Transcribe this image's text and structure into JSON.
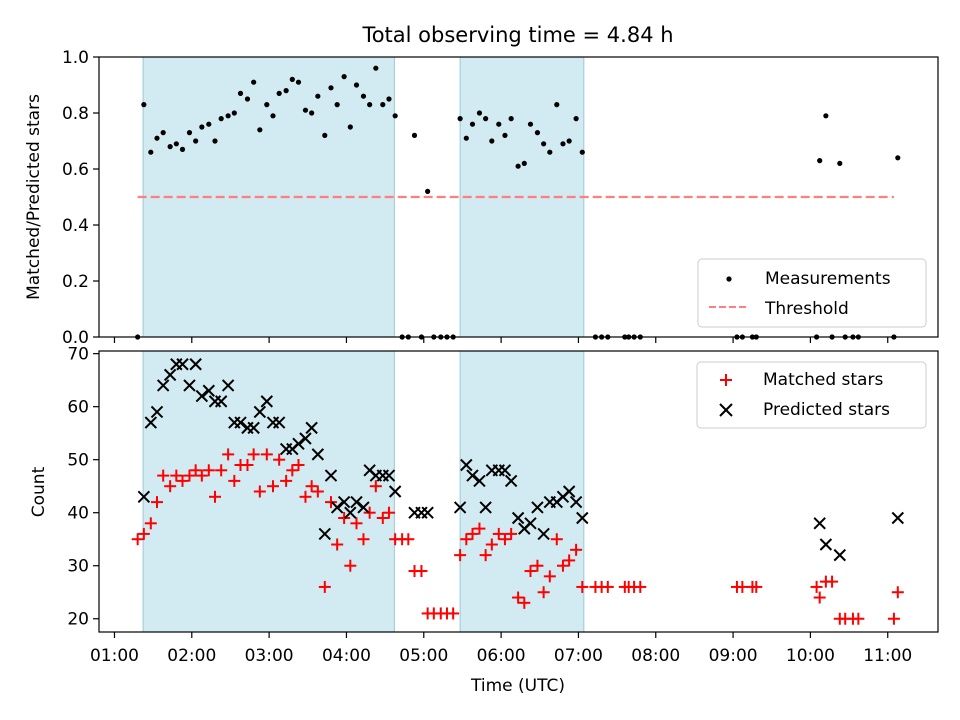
{
  "chart_data": [
    {
      "type": "scatter",
      "title": "Total observing time = 4.84 h",
      "xlabel": "",
      "ylabel": "Matched/Predicted stars",
      "xlim": [
        0.8,
        11.65
      ],
      "ylim": [
        0,
        1.0
      ],
      "yticks": [
        0.0,
        0.2,
        0.4,
        0.6,
        0.8,
        1.0
      ],
      "ytick_labels": [
        "0.0",
        "0.2",
        "0.4",
        "0.6",
        "0.8",
        "1.0"
      ],
      "shaded_ranges": [
        [
          1.37,
          4.62
        ],
        [
          5.47,
          7.07
        ]
      ],
      "shade_color": "#add8e6",
      "legend_position": "lower right",
      "series": [
        {
          "name": "Measurements",
          "marker": "dot",
          "color": "#000000",
          "points": [
            [
              1.3,
              0.0
            ],
            [
              1.38,
              0.83
            ],
            [
              1.47,
              0.66
            ],
            [
              1.55,
              0.71
            ],
            [
              1.63,
              0.73
            ],
            [
              1.72,
              0.68
            ],
            [
              1.8,
              0.69
            ],
            [
              1.88,
              0.67
            ],
            [
              1.97,
              0.73
            ],
            [
              2.05,
              0.7
            ],
            [
              2.13,
              0.75
            ],
            [
              2.22,
              0.76
            ],
            [
              2.3,
              0.7
            ],
            [
              2.38,
              0.78
            ],
            [
              2.47,
              0.79
            ],
            [
              2.55,
              0.8
            ],
            [
              2.63,
              0.87
            ],
            [
              2.72,
              0.85
            ],
            [
              2.8,
              0.91
            ],
            [
              2.88,
              0.74
            ],
            [
              2.97,
              0.83
            ],
            [
              3.05,
              0.79
            ],
            [
              3.13,
              0.87
            ],
            [
              3.22,
              0.88
            ],
            [
              3.3,
              0.92
            ],
            [
              3.38,
              0.91
            ],
            [
              3.47,
              0.81
            ],
            [
              3.55,
              0.8
            ],
            [
              3.63,
              0.86
            ],
            [
              3.72,
              0.72
            ],
            [
              3.8,
              0.89
            ],
            [
              3.88,
              0.83
            ],
            [
              3.97,
              0.93
            ],
            [
              4.05,
              0.75
            ],
            [
              4.13,
              0.9
            ],
            [
              4.22,
              0.86
            ],
            [
              4.3,
              0.83
            ],
            [
              4.38,
              0.96
            ],
            [
              4.47,
              0.83
            ],
            [
              4.55,
              0.85
            ],
            [
              4.63,
              0.79
            ],
            [
              4.72,
              0.0
            ],
            [
              4.8,
              0.0
            ],
            [
              4.88,
              0.72
            ],
            [
              4.97,
              0.0
            ],
            [
              5.05,
              0.52
            ],
            [
              5.13,
              0.0
            ],
            [
              5.22,
              0.0
            ],
            [
              5.3,
              0.0
            ],
            [
              5.38,
              0.0
            ],
            [
              5.47,
              0.78
            ],
            [
              5.55,
              0.71
            ],
            [
              5.63,
              0.76
            ],
            [
              5.72,
              0.8
            ],
            [
              5.8,
              0.78
            ],
            [
              5.88,
              0.7
            ],
            [
              5.97,
              0.76
            ],
            [
              6.05,
              0.72
            ],
            [
              6.13,
              0.78
            ],
            [
              6.22,
              0.61
            ],
            [
              6.3,
              0.62
            ],
            [
              6.38,
              0.76
            ],
            [
              6.47,
              0.73
            ],
            [
              6.55,
              0.69
            ],
            [
              6.63,
              0.66
            ],
            [
              6.72,
              0.83
            ],
            [
              6.8,
              0.69
            ],
            [
              6.88,
              0.7
            ],
            [
              6.97,
              0.78
            ],
            [
              7.05,
              0.66
            ],
            [
              7.22,
              0.0
            ],
            [
              7.3,
              0.0
            ],
            [
              7.38,
              0.0
            ],
            [
              7.6,
              0.0
            ],
            [
              7.65,
              0.0
            ],
            [
              7.72,
              0.0
            ],
            [
              7.8,
              0.0
            ],
            [
              9.05,
              0.0
            ],
            [
              9.12,
              0.0
            ],
            [
              9.25,
              0.0
            ],
            [
              9.3,
              0.0
            ],
            [
              10.08,
              0.0
            ],
            [
              10.12,
              0.63
            ],
            [
              10.2,
              0.79
            ],
            [
              10.28,
              0.0
            ],
            [
              10.38,
              0.62
            ],
            [
              10.45,
              0.0
            ],
            [
              10.55,
              0.0
            ],
            [
              10.62,
              0.0
            ],
            [
              11.08,
              0.0
            ],
            [
              11.13,
              0.64
            ]
          ]
        },
        {
          "name": "Threshold",
          "type": "line",
          "style": "dashed",
          "color": "#ff7f7f",
          "x": [
            1.3,
            11.08
          ],
          "y": [
            0.5,
            0.5
          ]
        }
      ]
    },
    {
      "type": "scatter",
      "title": "",
      "xlabel": "Time (UTC)",
      "ylabel": "Count",
      "xlim": [
        0.8,
        11.65
      ],
      "ylim": [
        17.5,
        70.5
      ],
      "yticks": [
        20,
        30,
        40,
        50,
        60,
        70
      ],
      "xticks": [
        1,
        2,
        3,
        4,
        5,
        6,
        7,
        8,
        9,
        10,
        11
      ],
      "xtick_labels": [
        "01:00",
        "02:00",
        "03:00",
        "04:00",
        "05:00",
        "06:00",
        "07:00",
        "08:00",
        "09:00",
        "10:00",
        "11:00"
      ],
      "shaded_ranges": [
        [
          1.37,
          4.62
        ],
        [
          5.47,
          7.07
        ]
      ],
      "shade_color": "#add8e6",
      "legend_position": "upper right",
      "series": [
        {
          "name": "Matched stars",
          "marker": "+",
          "color": "#ff0000",
          "points": [
            [
              1.3,
              35
            ],
            [
              1.38,
              36
            ],
            [
              1.47,
              38
            ],
            [
              1.55,
              42
            ],
            [
              1.63,
              47
            ],
            [
              1.72,
              45
            ],
            [
              1.8,
              47
            ],
            [
              1.88,
              46
            ],
            [
              1.97,
              47
            ],
            [
              2.05,
              48
            ],
            [
              2.13,
              47
            ],
            [
              2.22,
              48
            ],
            [
              2.3,
              43
            ],
            [
              2.38,
              48
            ],
            [
              2.47,
              51
            ],
            [
              2.55,
              46
            ],
            [
              2.63,
              49
            ],
            [
              2.72,
              49
            ],
            [
              2.8,
              51
            ],
            [
              2.88,
              44
            ],
            [
              2.97,
              51
            ],
            [
              3.05,
              45
            ],
            [
              3.13,
              50
            ],
            [
              3.22,
              46
            ],
            [
              3.3,
              48
            ],
            [
              3.38,
              49
            ],
            [
              3.47,
              43
            ],
            [
              3.55,
              45
            ],
            [
              3.63,
              44
            ],
            [
              3.72,
              26
            ],
            [
              3.8,
              42
            ],
            [
              3.88,
              34
            ],
            [
              3.97,
              39
            ],
            [
              4.05,
              30
            ],
            [
              4.13,
              38
            ],
            [
              4.22,
              35
            ],
            [
              4.3,
              40
            ],
            [
              4.38,
              45
            ],
            [
              4.47,
              39
            ],
            [
              4.55,
              40
            ],
            [
              4.63,
              35
            ],
            [
              4.72,
              35
            ],
            [
              4.8,
              35
            ],
            [
              4.88,
              29
            ],
            [
              4.97,
              29
            ],
            [
              5.05,
              21
            ],
            [
              5.13,
              21
            ],
            [
              5.22,
              21
            ],
            [
              5.3,
              21
            ],
            [
              5.38,
              21
            ],
            [
              5.47,
              32
            ],
            [
              5.55,
              35
            ],
            [
              5.63,
              36
            ],
            [
              5.72,
              37
            ],
            [
              5.8,
              32
            ],
            [
              5.88,
              34
            ],
            [
              5.97,
              36
            ],
            [
              6.05,
              35
            ],
            [
              6.13,
              36
            ],
            [
              6.22,
              24
            ],
            [
              6.3,
              23
            ],
            [
              6.38,
              29
            ],
            [
              6.47,
              30
            ],
            [
              6.55,
              25
            ],
            [
              6.63,
              28
            ],
            [
              6.72,
              35
            ],
            [
              6.8,
              30
            ],
            [
              6.88,
              31
            ],
            [
              6.97,
              33
            ],
            [
              7.05,
              26
            ],
            [
              7.22,
              26
            ],
            [
              7.3,
              26
            ],
            [
              7.38,
              26
            ],
            [
              7.6,
              26
            ],
            [
              7.65,
              26
            ],
            [
              7.72,
              26
            ],
            [
              7.8,
              26
            ],
            [
              9.05,
              26
            ],
            [
              9.12,
              26
            ],
            [
              9.25,
              26
            ],
            [
              9.3,
              26
            ],
            [
              10.08,
              26
            ],
            [
              10.12,
              24
            ],
            [
              10.2,
              27
            ],
            [
              10.28,
              27
            ],
            [
              10.38,
              20
            ],
            [
              10.45,
              20
            ],
            [
              10.55,
              20
            ],
            [
              10.62,
              20
            ],
            [
              11.08,
              20
            ],
            [
              11.13,
              25
            ]
          ]
        },
        {
          "name": "Predicted stars",
          "marker": "x",
          "color": "#000000",
          "points": [
            [
              1.38,
              43
            ],
            [
              1.47,
              57
            ],
            [
              1.55,
              59
            ],
            [
              1.63,
              64
            ],
            [
              1.72,
              66
            ],
            [
              1.8,
              68
            ],
            [
              1.88,
              68
            ],
            [
              1.97,
              64
            ],
            [
              2.05,
              68
            ],
            [
              2.13,
              62
            ],
            [
              2.22,
              63
            ],
            [
              2.3,
              61
            ],
            [
              2.38,
              61
            ],
            [
              2.47,
              64
            ],
            [
              2.55,
              57
            ],
            [
              2.63,
              57
            ],
            [
              2.72,
              56
            ],
            [
              2.8,
              56
            ],
            [
              2.88,
              59
            ],
            [
              2.97,
              61
            ],
            [
              3.05,
              57
            ],
            [
              3.13,
              57
            ],
            [
              3.22,
              52
            ],
            [
              3.3,
              52
            ],
            [
              3.38,
              53
            ],
            [
              3.47,
              54
            ],
            [
              3.55,
              56
            ],
            [
              3.63,
              51
            ],
            [
              3.72,
              36
            ],
            [
              3.8,
              47
            ],
            [
              3.88,
              41
            ],
            [
              3.97,
              42
            ],
            [
              4.05,
              40
            ],
            [
              4.13,
              42
            ],
            [
              4.22,
              41
            ],
            [
              4.3,
              48
            ],
            [
              4.38,
              47
            ],
            [
              4.47,
              47
            ],
            [
              4.55,
              47
            ],
            [
              4.63,
              44
            ],
            [
              4.88,
              40
            ],
            [
              4.97,
              40
            ],
            [
              5.05,
              40
            ],
            [
              5.47,
              41
            ],
            [
              5.55,
              49
            ],
            [
              5.63,
              47
            ],
            [
              5.72,
              46
            ],
            [
              5.8,
              41
            ],
            [
              5.88,
              48
            ],
            [
              5.97,
              48
            ],
            [
              6.05,
              48
            ],
            [
              6.13,
              46
            ],
            [
              6.22,
              39
            ],
            [
              6.3,
              37
            ],
            [
              6.38,
              38
            ],
            [
              6.47,
              41
            ],
            [
              6.55,
              36
            ],
            [
              6.63,
              42
            ],
            [
              6.72,
              42
            ],
            [
              6.8,
              43
            ],
            [
              6.88,
              44
            ],
            [
              6.97,
              42
            ],
            [
              7.05,
              39
            ],
            [
              10.12,
              38
            ],
            [
              10.2,
              34
            ],
            [
              10.38,
              32
            ],
            [
              11.13,
              39
            ]
          ]
        }
      ]
    }
  ]
}
